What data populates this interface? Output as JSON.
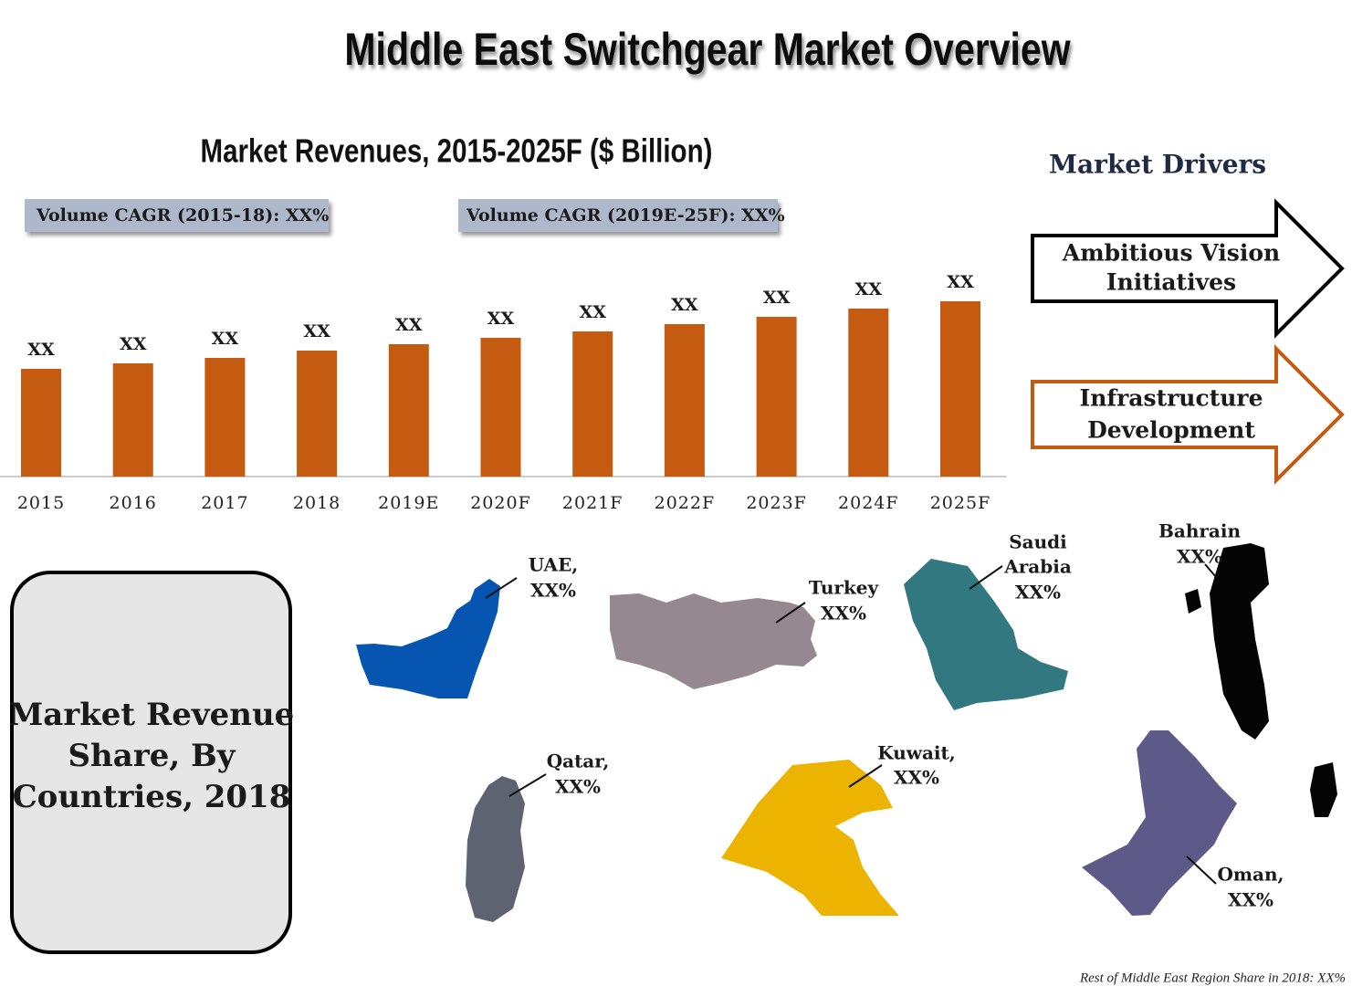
{
  "title": "Middle East Switchgear Market Overview",
  "chart_data": {
    "type": "bar",
    "title": "Market Revenues, 2015-2025F ($ Billion)",
    "annotations": [
      "Volume CAGR (2015-18): XX%",
      "Volume CAGR (2019E-25F): XX%"
    ],
    "categories": [
      "2015",
      "2016",
      "2017",
      "2018",
      "2019E",
      "2020F",
      "2021F",
      "2022F",
      "2023F",
      "2024F",
      "2025F"
    ],
    "values": [
      118,
      124,
      130,
      138,
      145,
      152,
      159,
      167,
      175,
      184,
      192
    ],
    "value_labels": [
      "XX",
      "XX",
      "XX",
      "XX",
      "XX",
      "XX",
      "XX",
      "XX",
      "XX",
      "XX",
      "XX"
    ],
    "color": "#c55a11",
    "ylim": [
      0,
      200
    ]
  },
  "drivers": {
    "title": "Market Drivers",
    "items": [
      [
        "Ambitious Vision",
        "Initiatives"
      ],
      [
        "Infrastructure",
        "Development"
      ]
    ]
  },
  "share": {
    "title": [
      "Market Revenue",
      "Share, By",
      "Countries, 2018"
    ],
    "countries": [
      [
        "UAE,",
        "XX%"
      ],
      [
        "Turkey",
        "XX%"
      ],
      [
        "Saudi",
        "Arabia",
        "XX%"
      ],
      [
        "Bahrain",
        "XX%"
      ],
      [
        "Qatar,",
        "XX%"
      ],
      [
        "Kuwait,",
        "XX%"
      ],
      [
        "Oman,",
        "XX%"
      ]
    ],
    "footnote": "Rest of Middle East Region Share in 2018: XX%"
  }
}
